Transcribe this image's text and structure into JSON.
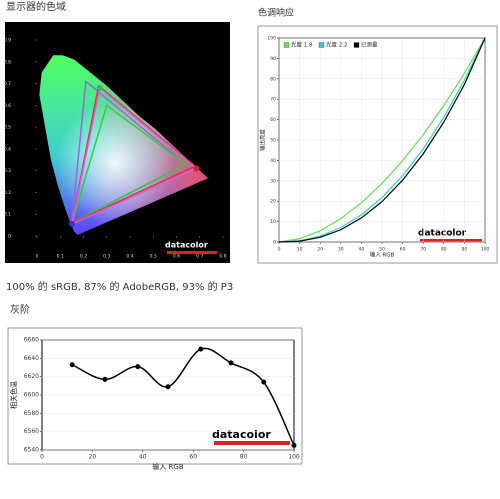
{
  "chart_data": [
    {
      "type": "gamut",
      "title": "显示器的色域",
      "subtitle": "100% 的 sRGB, 87% 的 AdobeRGB, 93% 的 P3",
      "watermark": "datacolor",
      "xlim": [
        0,
        0.8
      ],
      "ylim": [
        0,
        0.9
      ],
      "xticks": [
        0,
        0.1,
        0.2,
        0.3,
        0.4,
        0.5,
        0.6,
        0.7,
        0.8
      ],
      "yticks": [
        0,
        0.1,
        0.2,
        0.3,
        0.4,
        0.5,
        0.6,
        0.7,
        0.8,
        0.9
      ],
      "series": [
        {
          "color": "#9966dd",
          "x": [
            0.64,
            0.21,
            0.15
          ],
          "values": [
            0.33,
            0.71,
            0.06
          ]
        },
        {
          "color": "#33cc44",
          "x": [
            0.64,
            0.3,
            0.15
          ],
          "values": [
            0.33,
            0.6,
            0.06
          ]
        },
        {
          "color": "#dd3344",
          "x": [
            0.68,
            0.265,
            0.15
          ],
          "values": [
            0.32,
            0.69,
            0.06
          ]
        },
        {
          "color": "#cc66cc",
          "x": [
            0.685,
            0.27,
            0.15
          ],
          "values": [
            0.31,
            0.68,
            0.055
          ]
        }
      ]
    },
    {
      "type": "line",
      "title": "色调响应",
      "watermark": "datacolor",
      "x_label": "输入 RGB",
      "y_label": "输出亮度",
      "x": [
        0,
        10,
        20,
        30,
        40,
        50,
        60,
        70,
        80,
        90,
        100
      ],
      "xlim": [
        0,
        100
      ],
      "ylim": [
        0,
        100
      ],
      "xticks": [
        0,
        10,
        20,
        30,
        40,
        50,
        60,
        70,
        80,
        90,
        100
      ],
      "yticks": [
        0,
        10,
        20,
        30,
        40,
        50,
        60,
        70,
        80,
        90,
        100
      ],
      "grid": true,
      "legend": "top-left",
      "series": [
        {
          "name": "光度 1.8",
          "color": "#66dd55",
          "values": [
            0,
            1.6,
            5.5,
            11.5,
            19.2,
            28.7,
            39.9,
            52.6,
            66.9,
            82.7,
            100
          ]
        },
        {
          "name": "光度 2.2",
          "color": "#33cccc",
          "values": [
            0,
            0.6,
            2.9,
            7.1,
            13.3,
            21.8,
            32.5,
            45.6,
            61.2,
            79.3,
            100
          ]
        },
        {
          "name": "已测量",
          "color": "#000000",
          "values": [
            0,
            0.4,
            2.3,
            6.0,
            11.8,
            19.8,
            30.3,
            43.2,
            58.8,
            77.2,
            100
          ]
        }
      ]
    },
    {
      "type": "smooth",
      "title": "灰阶",
      "watermark": "datacolor",
      "x_label": "输入 RGB",
      "y_label": "相关色温",
      "x": [
        12,
        25,
        38,
        50,
        63,
        75,
        88,
        100
      ],
      "xlim": [
        0,
        100
      ],
      "ylim": [
        6540,
        6660
      ],
      "xticks": [
        0,
        20,
        40,
        60,
        80,
        100
      ],
      "yticks": [
        6540,
        6560,
        6580,
        6600,
        6620,
        6640,
        6660
      ],
      "grid": true,
      "series": [
        {
          "color": "#000000",
          "values": [
            6633,
            6617,
            6631,
            6609,
            6650,
            6635,
            6614,
            6545
          ]
        }
      ]
    }
  ]
}
